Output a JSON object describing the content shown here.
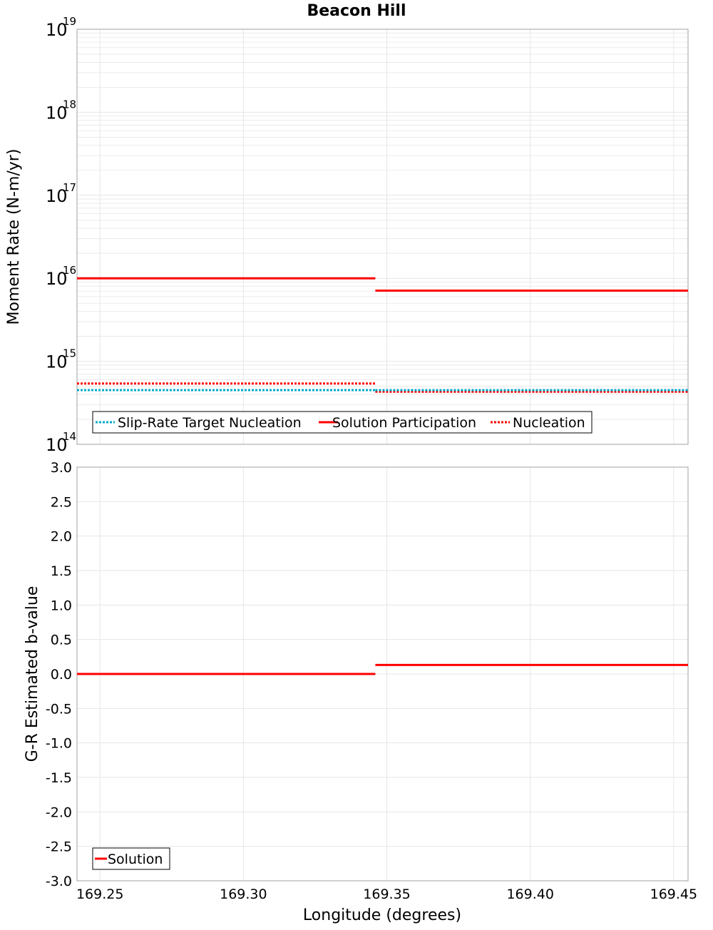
{
  "title": "Beacon Hill",
  "colors": {
    "target": "#00a9c8",
    "solution": "#ff0000",
    "grid": "#e6e6e6",
    "frame": "#a0a0a0"
  },
  "chart_data": [
    {
      "type": "line",
      "name": "moment-rate",
      "ylabel": "Moment Rate (N-m/yr)",
      "yscale": "log",
      "ylim_exp": [
        14,
        19
      ],
      "ytick_base": "10",
      "ytick_exponents": [
        "14",
        "15",
        "16",
        "17",
        "18",
        "19"
      ],
      "xlim": [
        169.242,
        169.455
      ],
      "legend_position": "bottom-left",
      "series": [
        {
          "name": "Slip-Rate Target Nucleation",
          "style": "dotted",
          "color_key": "target",
          "segments": [
            [
              169.242,
              169.346,
              450000000000000.0
            ],
            [
              169.346,
              169.455,
              450000000000000.0
            ]
          ]
        },
        {
          "name": "Solution Participation",
          "style": "solid",
          "color_key": "solution",
          "segments": [
            [
              169.242,
              169.346,
              1e+16
            ],
            [
              169.346,
              169.455,
              7100000000000000.0
            ]
          ]
        },
        {
          "name": "Nucleation",
          "style": "dotted",
          "color_key": "solution",
          "segments": [
            [
              169.242,
              169.346,
              540000000000000.0
            ],
            [
              169.346,
              169.455,
              430000000000000.0
            ]
          ]
        }
      ]
    },
    {
      "type": "line",
      "name": "b-value",
      "ylabel": "G-R Estimated b-value",
      "ylim": [
        -3.0,
        3.0
      ],
      "yticks": [
        "-3.0",
        "-2.5",
        "-2.0",
        "-1.5",
        "-1.0",
        "-0.5",
        "0.0",
        "0.5",
        "1.0",
        "1.5",
        "2.0",
        "2.5",
        "3.0"
      ],
      "xlabel": "Longitude (degrees)",
      "xlim": [
        169.242,
        169.455
      ],
      "xticks": [
        "169.25",
        "169.30",
        "169.35",
        "169.40",
        "169.45"
      ],
      "legend_position": "bottom-left",
      "series": [
        {
          "name": "Solution",
          "style": "solid",
          "color_key": "solution",
          "segments": [
            [
              169.242,
              169.346,
              0.0
            ],
            [
              169.346,
              169.455,
              0.13
            ]
          ]
        }
      ]
    }
  ]
}
